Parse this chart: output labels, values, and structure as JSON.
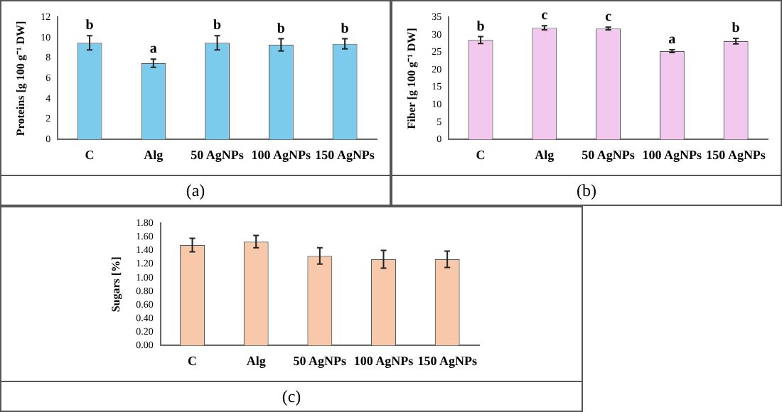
{
  "chart_data": [
    {
      "type": "bar",
      "ylabel": "Proteins [g 100 g⁻¹ DW]",
      "categories": [
        "C",
        "Alg",
        "50 AgNPs",
        "100 AgNPs",
        "150 AgNPs"
      ],
      "values": [
        9.5,
        7.5,
        9.5,
        9.3,
        9.4
      ],
      "errors": [
        0.7,
        0.4,
        0.7,
        0.6,
        0.5
      ],
      "color": "#7ccbec",
      "ylim": [
        0,
        12
      ],
      "yticks": [
        0,
        2,
        4,
        6,
        8,
        10,
        12
      ],
      "grid": false,
      "legend": false,
      "annotations": [
        {
          "text": "b",
          "x": "C",
          "y": 10.2
        },
        {
          "text": "a",
          "x": "Alg",
          "y": 7.9
        },
        {
          "text": "b",
          "x": "50 AgNPs",
          "y": 10.2
        },
        {
          "text": "b",
          "x": "100 AgNPs",
          "y": 9.9
        },
        {
          "text": "b",
          "x": "150 AgNPs",
          "y": 9.9
        },
        "(a)"
      ]
    },
    {
      "type": "bar",
      "ylabel": "Fiber [g 100 g⁻¹ DW]",
      "categories": [
        "C",
        "Alg",
        "50 AgNPs",
        "100 AgNPs",
        "150 AgNPs"
      ],
      "values": [
        28.5,
        32,
        31.8,
        25.3,
        28.2
      ],
      "errors": [
        1,
        0.6,
        0.4,
        0.4,
        0.8
      ],
      "color": "#f2c8ef",
      "ylim": [
        0,
        35
      ],
      "yticks": [
        0,
        5,
        10,
        15,
        20,
        25,
        30,
        35
      ],
      "grid": false,
      "legend": false,
      "annotations": [
        {
          "text": "b",
          "x": "C",
          "y": 29.5
        },
        {
          "text": "c",
          "x": "Alg",
          "y": 32.6
        },
        {
          "text": "c",
          "x": "50 AgNPs",
          "y": 32.2
        },
        {
          "text": "a",
          "x": "100 AgNPs",
          "y": 25.7
        },
        {
          "text": "b",
          "x": "150 AgNPs",
          "y": 29
        },
        "(b)"
      ]
    },
    {
      "type": "bar",
      "ylabel": "Sugars [%]",
      "categories": [
        "C",
        "Alg",
        "50 AgNPs",
        "100 AgNPs",
        "150 AgNPs"
      ],
      "values": [
        1.48,
        1.53,
        1.32,
        1.27,
        1.27
      ],
      "errors": [
        0.1,
        0.09,
        0.12,
        0.13,
        0.12
      ],
      "color": "#f7c8aa",
      "ylim": [
        0,
        1.8
      ],
      "yticks": [
        {
          "value": 0,
          "label": "0.00"
        },
        {
          "value": 0.2,
          "label": "0.20"
        },
        {
          "value": 0.4,
          "label": "0.40"
        },
        {
          "value": 0.6,
          "label": "0.60"
        },
        {
          "value": 0.8,
          "label": "0.80"
        },
        {
          "value": 1,
          "label": "1.00"
        },
        {
          "value": 1.2,
          "label": "1.20"
        },
        {
          "value": 1.4,
          "label": "1.40"
        },
        {
          "value": 1.6,
          "label": "1.60"
        },
        {
          "value": 1.8,
          "label": "1.80"
        }
      ],
      "grid": false,
      "legend": false,
      "annotations": [
        "(c)"
      ]
    }
  ]
}
